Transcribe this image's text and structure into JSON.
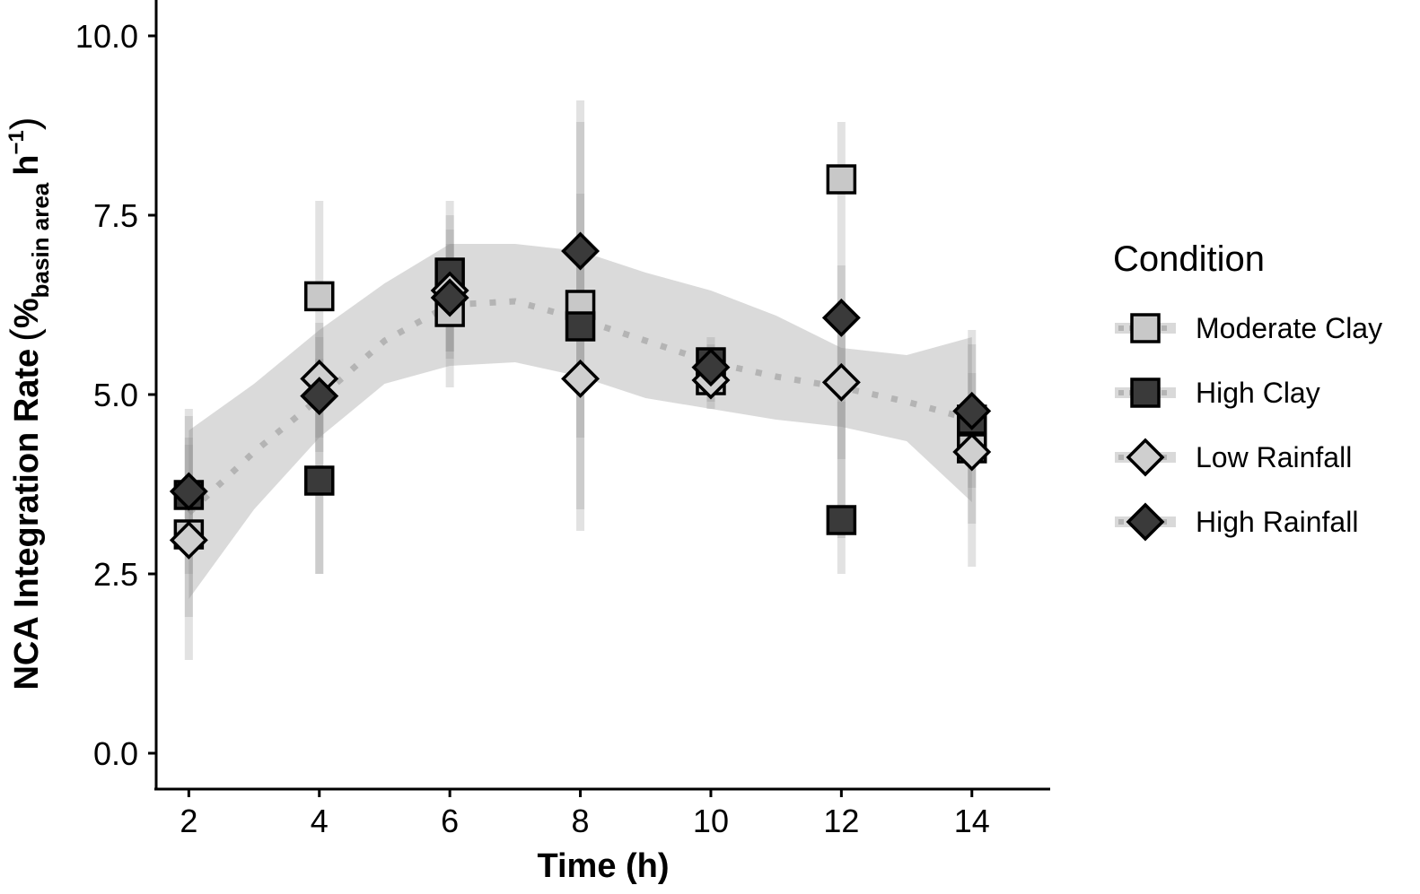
{
  "chart_data": {
    "type": "scatter",
    "title": "",
    "xlabel": "Time (h)",
    "ylabel": {
      "main": "NCA Integration Rate",
      "open_paren": "(",
      "percent": "%",
      "subscript": "basin area",
      "unit": "h",
      "superscript": "−1",
      "close_paren": ")"
    },
    "xlim": [
      1.5,
      15.2
    ],
    "ylim": [
      -0.5,
      10.5
    ],
    "xticks": [
      2,
      4,
      6,
      8,
      10,
      12,
      14
    ],
    "xtick_labels": [
      "2",
      "4",
      "6",
      "8",
      "10",
      "12",
      "14"
    ],
    "yticks": [
      0,
      2.5,
      5,
      7.5,
      10
    ],
    "ytick_labels": [
      "0.0",
      "2.5",
      "5.0",
      "7.5",
      "10.0"
    ],
    "grid": false,
    "legend": {
      "title": "Condition",
      "position": "right"
    },
    "series": [
      {
        "name": "Moderate Clay",
        "marker": "square",
        "fill": "#c8c8c8",
        "points": [
          {
            "x": 2,
            "y": 3.05,
            "lo": 1.3,
            "hi": 4.8
          },
          {
            "x": 4,
            "y": 6.37,
            "lo": 2.5,
            "hi": 7.7
          },
          {
            "x": 6,
            "y": 6.15,
            "lo": 5.1,
            "hi": 7.5
          },
          {
            "x": 8,
            "y": 6.25,
            "lo": 3.1,
            "hi": 9.1
          },
          {
            "x": 10,
            "y": 5.2,
            "lo": 4.8,
            "hi": 5.6
          },
          {
            "x": 12,
            "y": 8.0,
            "lo": 2.5,
            "hi": 8.8
          },
          {
            "x": 14,
            "y": 4.25,
            "lo": 2.6,
            "hi": 5.7
          }
        ]
      },
      {
        "name": "High Clay",
        "marker": "square",
        "fill": "#3a3a3a",
        "points": [
          {
            "x": 2,
            "y": 3.6,
            "lo": 2.5,
            "hi": 4.7
          },
          {
            "x": 4,
            "y": 3.8,
            "lo": 2.5,
            "hi": 5.5
          },
          {
            "x": 6,
            "y": 6.7,
            "lo": 5.6,
            "hi": 7.7
          },
          {
            "x": 8,
            "y": 5.95,
            "lo": 3.4,
            "hi": 8.8
          },
          {
            "x": 10,
            "y": 5.45,
            "lo": 5.0,
            "hi": 5.8
          },
          {
            "x": 12,
            "y": 3.25,
            "lo": 3.0,
            "hi": 4.9
          },
          {
            "x": 14,
            "y": 4.65,
            "lo": 3.2,
            "hi": 5.9
          }
        ]
      },
      {
        "name": "Low Rainfall",
        "marker": "diamond",
        "fill": "#cfcfcf",
        "points": [
          {
            "x": 2,
            "y": 2.97,
            "lo": 1.9,
            "hi": 4.3
          },
          {
            "x": 4,
            "y": 5.22,
            "lo": 4.4,
            "hi": 6.0
          },
          {
            "x": 6,
            "y": 6.45,
            "lo": 5.5,
            "hi": 7.3
          },
          {
            "x": 8,
            "y": 5.22,
            "lo": 4.4,
            "hi": 6.2
          },
          {
            "x": 10,
            "y": 5.2,
            "lo": 4.9,
            "hi": 5.5
          },
          {
            "x": 12,
            "y": 5.17,
            "lo": 4.1,
            "hi": 6.3
          },
          {
            "x": 14,
            "y": 4.2,
            "lo": 3.7,
            "hi": 4.8
          }
        ]
      },
      {
        "name": "High Rainfall",
        "marker": "diamond",
        "fill": "#3a3a3a",
        "points": [
          {
            "x": 2,
            "y": 3.65,
            "lo": 2.9,
            "hi": 4.4
          },
          {
            "x": 4,
            "y": 4.98,
            "lo": 4.2,
            "hi": 5.8
          },
          {
            "x": 6,
            "y": 6.35,
            "lo": 5.6,
            "hi": 7.1
          },
          {
            "x": 8,
            "y": 7.0,
            "lo": 6.2,
            "hi": 7.8
          },
          {
            "x": 10,
            "y": 5.38,
            "lo": 5.1,
            "hi": 5.7
          },
          {
            "x": 12,
            "y": 6.07,
            "lo": 5.3,
            "hi": 6.8
          },
          {
            "x": 14,
            "y": 4.77,
            "lo": 4.2,
            "hi": 5.3
          }
        ]
      }
    ],
    "smooth": {
      "style": "dotted",
      "x": [
        2,
        3,
        4,
        5,
        6,
        7,
        8,
        9,
        10,
        11,
        12,
        13,
        14
      ],
      "y": [
        3.35,
        4.2,
        4.95,
        5.75,
        6.25,
        6.3,
        6.05,
        5.75,
        5.45,
        5.25,
        5.1,
        4.9,
        4.65
      ],
      "lower": [
        2.15,
        3.4,
        4.4,
        5.15,
        5.4,
        5.45,
        5.25,
        4.95,
        4.8,
        4.65,
        4.55,
        4.35,
        3.5
      ],
      "upper": [
        4.5,
        5.15,
        5.9,
        6.55,
        7.1,
        7.1,
        7.0,
        6.7,
        6.45,
        6.1,
        5.65,
        5.55,
        5.8
      ]
    }
  }
}
